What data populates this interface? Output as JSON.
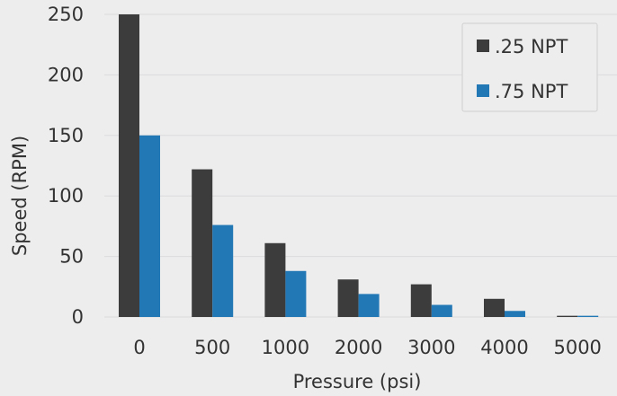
{
  "chart_data": {
    "type": "bar",
    "categories": [
      "0",
      "500",
      "1000",
      "2000",
      "3000",
      "4000",
      "5000"
    ],
    "series": [
      {
        "name": ".25 NPT",
        "values": [
          250,
          122,
          61,
          31,
          27,
          15,
          1
        ]
      },
      {
        "name": ".75 NPT",
        "values": [
          150,
          76,
          38,
          19,
          10,
          5,
          1
        ]
      }
    ],
    "xlabel": "Pressure (psi)",
    "ylabel": "Speed (RPM)",
    "ylim": [
      0,
      250
    ],
    "yticks": [
      "0",
      "50",
      "100",
      "150",
      "200",
      "250"
    ],
    "grid": true,
    "legend": "top-right",
    "colors": {
      "series": [
        "#3c3c3c",
        "#2277b5"
      ],
      "background": "#ededee",
      "grid": "#dcdcdc"
    }
  }
}
